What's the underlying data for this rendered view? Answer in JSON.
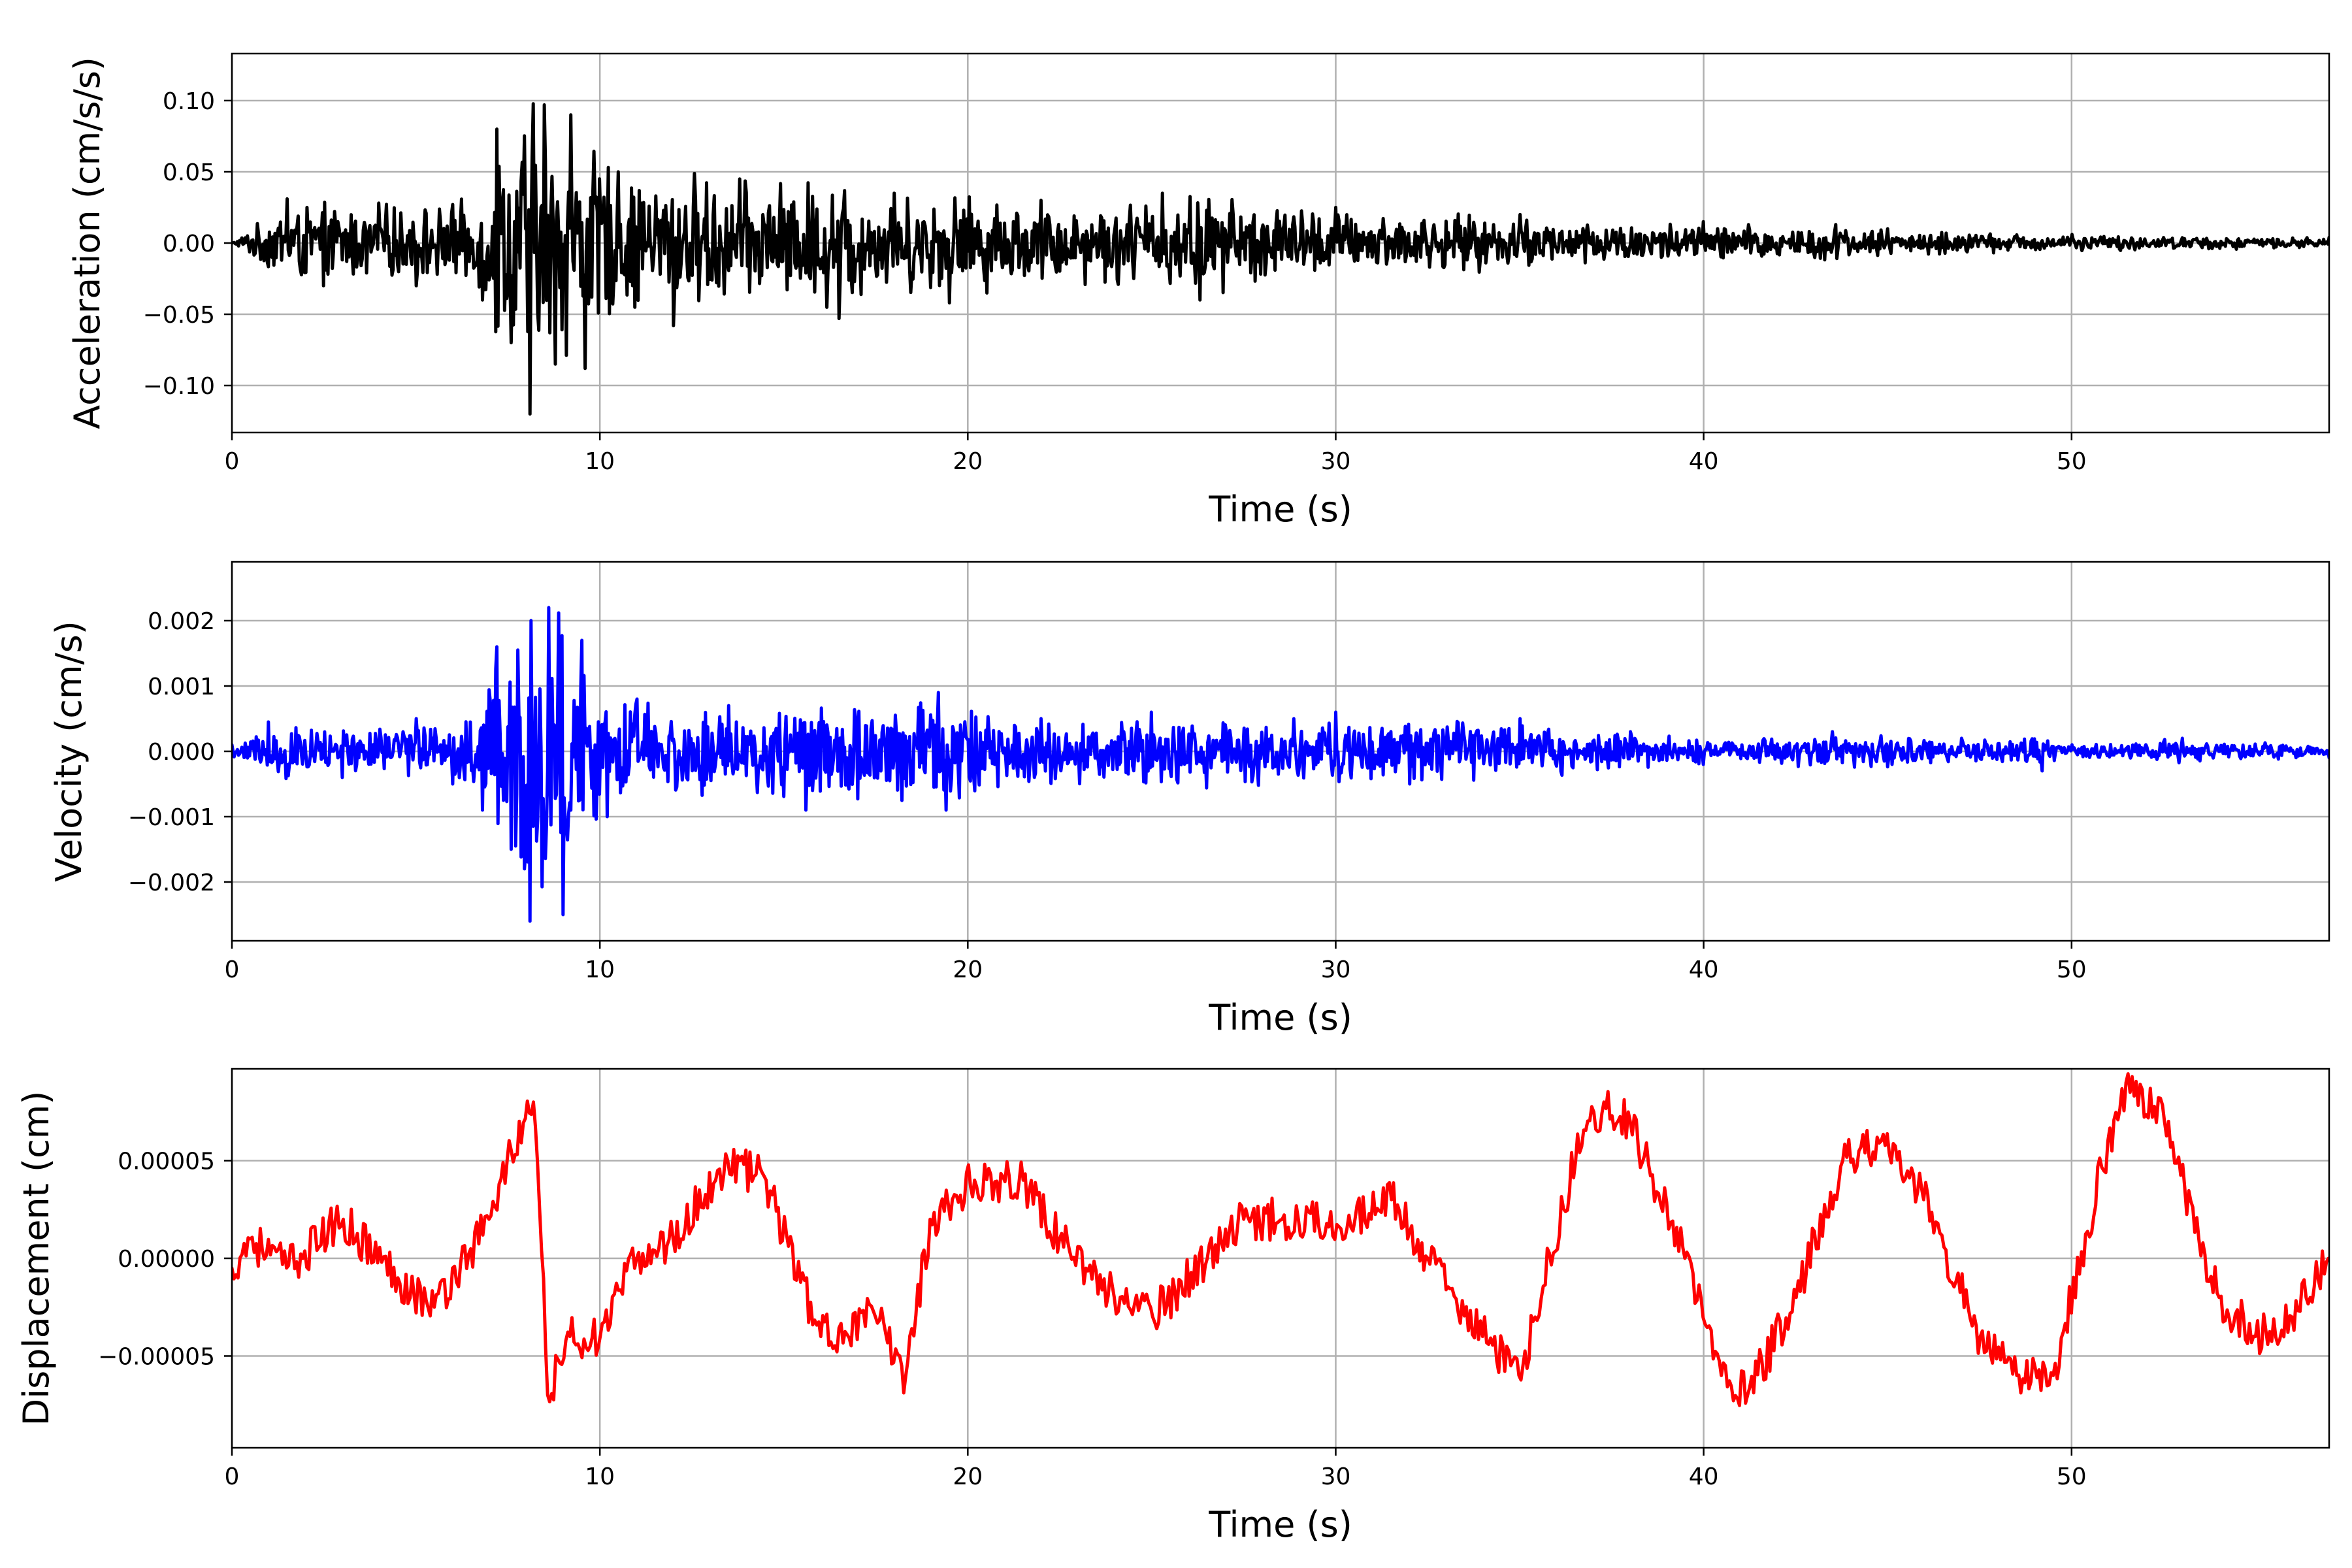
{
  "chart_data": [
    {
      "type": "line",
      "title": "",
      "xlabel": "Time (s)",
      "ylabel": "Acceleration (cm/s/s)",
      "xlim": [
        0,
        57
      ],
      "ylim": [
        -0.133,
        0.133
      ],
      "xticks": [
        0,
        10,
        20,
        30,
        40,
        50
      ],
      "xtick_labels": [
        "0",
        "10",
        "20",
        "30",
        "40",
        "50"
      ],
      "yticks": [
        -0.1,
        -0.05,
        0.0,
        0.05,
        0.1
      ],
      "ytick_labels": [
        "−0.10",
        "−0.05",
        "0.00",
        "0.05",
        "0.10"
      ],
      "grid": true,
      "legend": "none",
      "color": "#000000",
      "series": [
        {
          "x": [
            0,
            1.5,
            2.5,
            4,
            5,
            6,
            6.8,
            7.2,
            7.6,
            8.1,
            8.5,
            8.8,
            9.2,
            9.6,
            10.5,
            12,
            13.8,
            16.5,
            18,
            19.5,
            22,
            25.3,
            26.3,
            30,
            35,
            40,
            43.6,
            45,
            50,
            57
          ],
          "y": [
            0.0,
            0.031,
            -0.03,
            0.028,
            -0.03,
            0.027,
            -0.04,
            0.08,
            -0.07,
            -0.12,
            0.097,
            -0.085,
            0.09,
            -0.088,
            0.05,
            -0.058,
            0.045,
            -0.053,
            0.035,
            -0.042,
            0.03,
            0.035,
            -0.04,
            0.025,
            0.02,
            0.015,
            0.013,
            0.01,
            0.006,
            0.004
          ]
        }
      ]
    },
    {
      "type": "line",
      "title": "",
      "xlabel": "Time (s)",
      "ylabel": "Velocity (cm/s)",
      "xlim": [
        0,
        57
      ],
      "ylim": [
        -0.0029,
        0.0029
      ],
      "xticks": [
        0,
        10,
        20,
        30,
        40,
        50
      ],
      "xtick_labels": [
        "0",
        "10",
        "20",
        "30",
        "40",
        "50"
      ],
      "yticks": [
        -0.002,
        -0.001,
        0.0,
        0.001,
        0.002
      ],
      "ytick_labels": [
        "−0.002",
        "−0.001",
        "0.000",
        "0.001",
        "0.002"
      ],
      "grid": true,
      "legend": "none",
      "color": "#0000ff",
      "series": [
        {
          "x": [
            0,
            1,
            3,
            5,
            6,
            7.2,
            7.6,
            8.1,
            8.6,
            9.0,
            9.5,
            10.2,
            11,
            13.5,
            15.6,
            19.2,
            19.4,
            22,
            25,
            30,
            32,
            35,
            38,
            40,
            43.5,
            47,
            49.2,
            50,
            53,
            57
          ],
          "y": [
            0.0001,
            0.00045,
            -0.0004,
            0.0005,
            -0.0005,
            0.0016,
            -0.0015,
            -0.0026,
            0.0022,
            -0.0025,
            0.0017,
            -0.001,
            0.0008,
            0.0007,
            -0.0009,
            0.0009,
            -0.0009,
            0.0005,
            0.0006,
            0.0006,
            -0.0005,
            0.0005,
            0.0003,
            -0.0002,
            0.0003,
            0.0002,
            -0.0003,
            0.0001,
            0.0002,
            -0.0001
          ]
        }
      ]
    },
    {
      "type": "line",
      "title": "",
      "xlabel": "Time (s)",
      "ylabel": "Displacement (cm)",
      "xlim": [
        0,
        57
      ],
      "ylim": [
        -9.7e-05,
        9.7e-05
      ],
      "xticks": [
        0,
        10,
        20,
        30,
        40,
        50
      ],
      "xtick_labels": [
        "0",
        "10",
        "20",
        "30",
        "40",
        "50"
      ],
      "yticks": [
        -5e-05,
        0.0,
        5e-05
      ],
      "ytick_labels": [
        "−0.00005",
        "0.00000",
        "0.00005"
      ],
      "grid": true,
      "legend": "none",
      "color": "#ff0000",
      "series": [
        {
          "x": [
            0,
            0.5,
            1.5,
            3,
            4.5,
            5.5,
            7,
            7.5,
            8.2,
            8.6,
            9.2,
            10,
            11,
            12,
            13.5,
            14.5,
            16,
            17.5,
            18.3,
            19,
            20.2,
            21.5,
            22.5,
            24,
            25,
            26.5,
            27.5,
            29,
            30.5,
            31.5,
            32.5,
            34,
            35,
            36.5,
            37.3,
            38,
            39.5,
            40.5,
            41.2,
            42.5,
            43.8,
            44.8,
            46,
            47.5,
            48.5,
            49.5,
            51,
            51.5,
            52.5,
            54,
            55,
            56,
            57
          ],
          "y": [
            -5e-06,
            1e-05,
            -5e-06,
            2e-05,
            -1e-05,
            -2.5e-05,
            2e-05,
            5e-05,
            8e-05,
            -7e-05,
            -4e-05,
            -4e-05,
            0.0,
            1e-05,
            5e-05,
            4e-05,
            -4e-05,
            -3e-05,
            -6e-05,
            2e-05,
            4e-05,
            4e-05,
            1e-05,
            -2e-05,
            -3e-05,
            0.0,
            2e-05,
            2e-05,
            2e-05,
            3e-05,
            0.0,
            -4e-05,
            -6e-05,
            5e-05,
            8e-05,
            7e-05,
            0.0,
            -6e-05,
            -7e-05,
            -2e-05,
            5e-05,
            6e-05,
            3e-05,
            -4e-05,
            -6e-05,
            -6e-05,
            6e-05,
            9e-05,
            7e-05,
            -2e-05,
            -4e-05,
            -3e-05,
            0.0
          ]
        }
      ]
    }
  ]
}
